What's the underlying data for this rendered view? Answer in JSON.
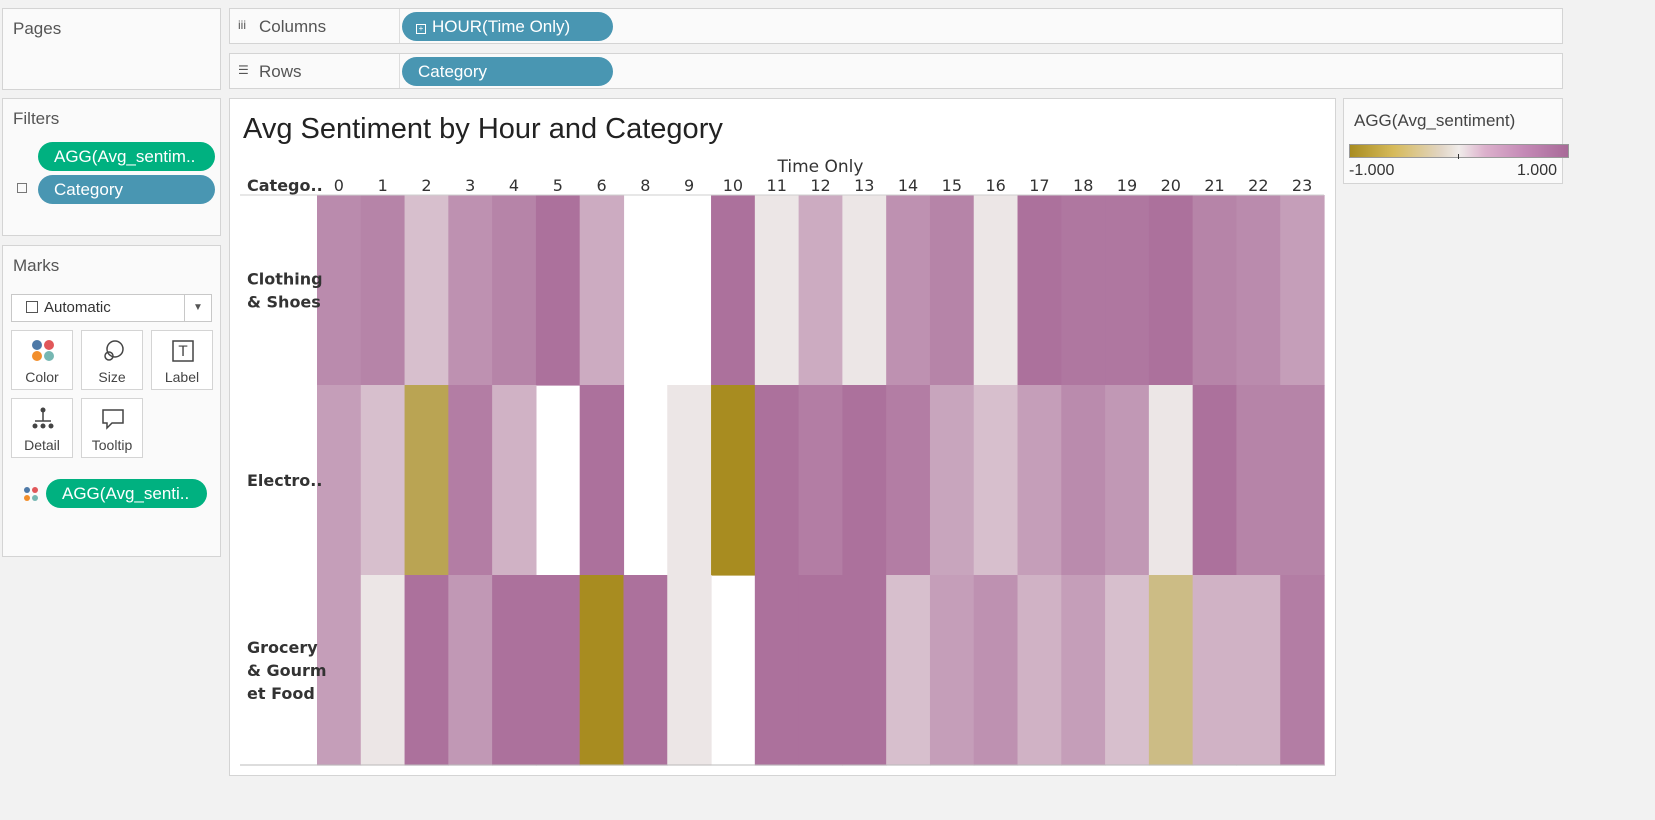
{
  "pages_panel": {
    "title": "Pages"
  },
  "columns_shelf": {
    "label": "Columns",
    "pill": "HOUR(Time Only)",
    "pill_icon": "plus-box-icon",
    "shelf_icon": "columns-icon"
  },
  "rows_shelf": {
    "label": "Rows",
    "pill": "Category",
    "shelf_icon": "rows-icon"
  },
  "filters_panel": {
    "title": "Filters",
    "items": [
      "AGG(Avg_sentim..",
      "Category"
    ]
  },
  "marks_panel": {
    "title": "Marks",
    "mark_type": "Automatic",
    "cards": [
      {
        "label": "Color",
        "icon": "color-icon"
      },
      {
        "label": "Size",
        "icon": "size-icon"
      },
      {
        "label": "Label",
        "icon": "label-icon"
      },
      {
        "label": "Detail",
        "icon": "detail-icon"
      },
      {
        "label": "Tooltip",
        "icon": "tooltip-icon"
      }
    ],
    "color_pill": "AGG(Avg_senti.."
  },
  "legend": {
    "title": "AGG(Avg_sentiment)",
    "min_label": "-1.000",
    "max_label": "1.000",
    "colors": {
      "negative": "#a88c20",
      "neutral": "#f0ecea",
      "positive": "#a86a98"
    }
  },
  "chart_data": {
    "type": "heatmap",
    "title": "Avg Sentiment by Hour and Category",
    "x_header": "Time Only",
    "y_header": "Catego..",
    "x": [
      "0",
      "1",
      "2",
      "3",
      "4",
      "5",
      "6",
      "8",
      "9",
      "10",
      "11",
      "12",
      "13",
      "14",
      "15",
      "16",
      "17",
      "18",
      "19",
      "20",
      "21",
      "22",
      "23"
    ],
    "y": [
      "Clothing & Shoes",
      "Electro..",
      "Grocery & Gourmet Food"
    ],
    "color_range": [
      -1,
      1
    ],
    "values": [
      [
        0.75,
        0.8,
        0.35,
        0.7,
        0.8,
        0.95,
        0.5,
        null,
        null,
        0.95,
        0.05,
        0.5,
        0.05,
        0.7,
        0.8,
        0.05,
        0.95,
        0.9,
        0.9,
        0.95,
        0.8,
        0.75,
        0.6
      ],
      [
        0.6,
        0.35,
        -0.75,
        0.85,
        0.45,
        null,
        0.95,
        null,
        0.05,
        -1.0,
        0.95,
        0.85,
        0.95,
        0.85,
        0.55,
        0.35,
        0.6,
        0.75,
        0.65,
        0.05,
        0.95,
        0.8,
        0.8
      ],
      [
        0.6,
        0.05,
        0.95,
        0.65,
        0.95,
        0.95,
        -1.0,
        0.95,
        0.05,
        null,
        0.95,
        0.95,
        0.95,
        0.35,
        0.6,
        0.7,
        0.45,
        0.6,
        0.35,
        -0.5,
        0.45,
        0.45,
        0.85
      ]
    ]
  }
}
